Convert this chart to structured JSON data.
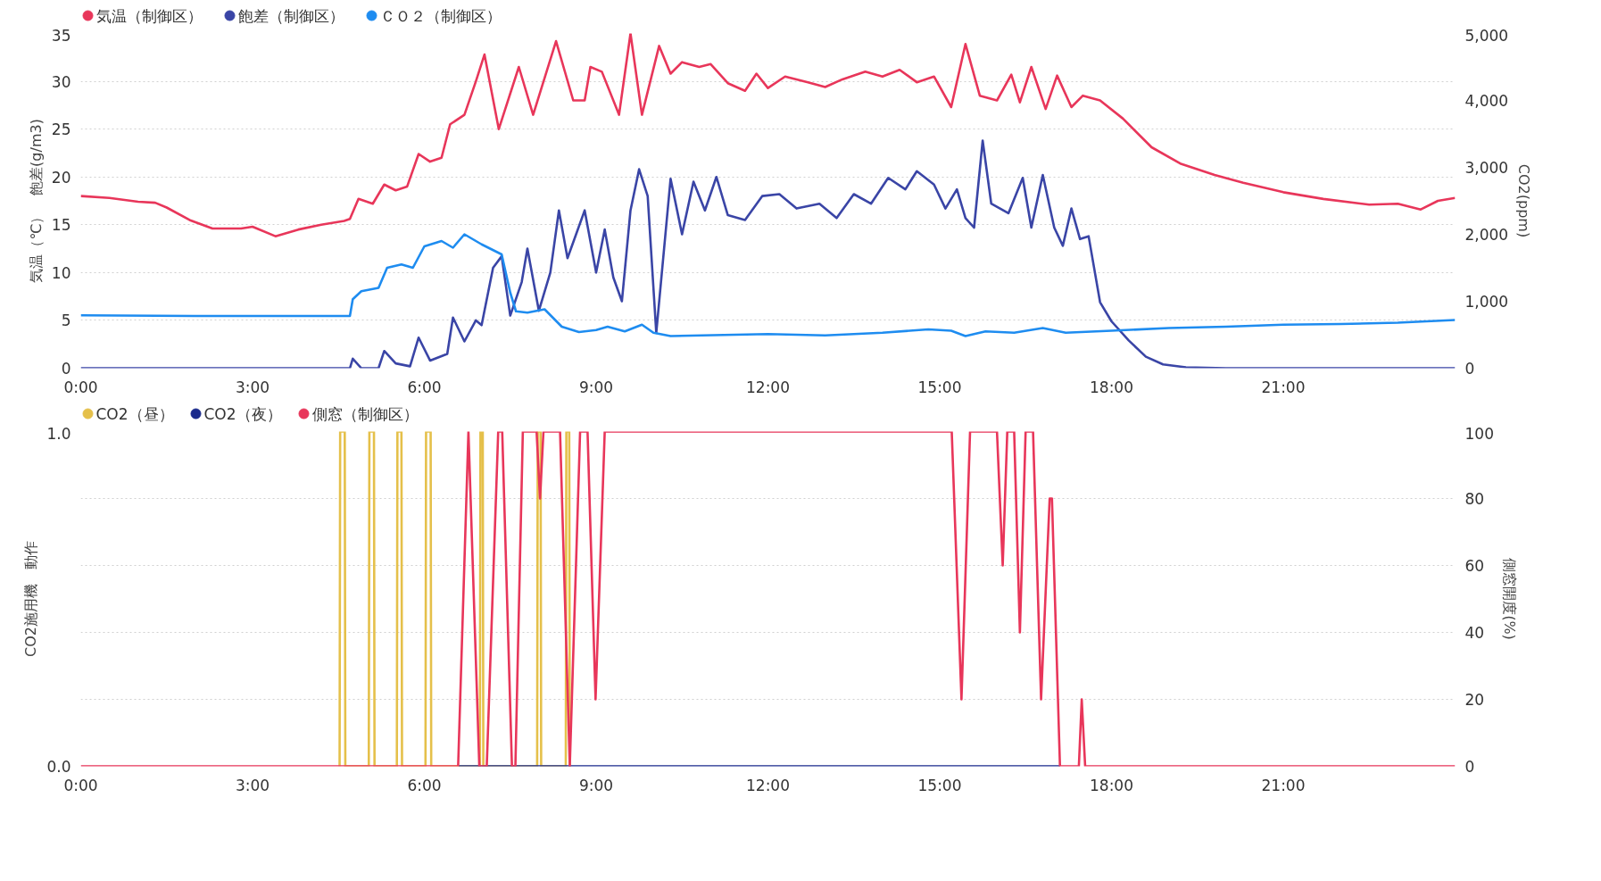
{
  "chart_data": [
    {
      "type": "line",
      "ylabel": "気温（℃）　飽差(g/m3)",
      "y2label": "CO2(ppm)",
      "legend": "top left",
      "grid": "y",
      "marker": "none",
      "line_style": "solid",
      "xlim": [
        0,
        24
      ],
      "xticks": [
        {
          "value": 0,
          "label": "0:00"
        },
        {
          "value": 3,
          "label": "3:00"
        },
        {
          "value": 6,
          "label": "6:00"
        },
        {
          "value": 9,
          "label": "9:00"
        },
        {
          "value": 12,
          "label": "12:00"
        },
        {
          "value": 15,
          "label": "15:00"
        },
        {
          "value": 18,
          "label": "18:00"
        },
        {
          "value": 21,
          "label": "21:00"
        }
      ],
      "ylim": [
        0,
        35
      ],
      "yticks": [
        0,
        5,
        10,
        15,
        20,
        25,
        30,
        35
      ],
      "y2lim": [
        0,
        5000
      ],
      "y2ticks": [
        0,
        {
          "value": 1000,
          "label": "1,000"
        },
        {
          "value": 2000,
          "label": "2,000"
        },
        {
          "value": 3000,
          "label": "3,000"
        },
        {
          "value": 4000,
          "label": "4,000"
        },
        {
          "value": 5000,
          "label": "5,000"
        }
      ],
      "series": [
        {
          "name": "気温（制御区）",
          "color": "#e8365a",
          "x": [
            0,
            0.5,
            1.0,
            1.3,
            1.5,
            1.9,
            2.3,
            2.8,
            3.0,
            3.4,
            3.8,
            4.2,
            4.6,
            4.7,
            4.85,
            5.1,
            5.3,
            5.5,
            5.7,
            5.9,
            6.1,
            6.3,
            6.45,
            6.7,
            6.9,
            7.05,
            7.3,
            7.65,
            7.9,
            8.3,
            8.6,
            8.8,
            8.9,
            9.1,
            9.4,
            9.6,
            9.8,
            10.1,
            10.3,
            10.5,
            10.8,
            11.0,
            11.3,
            11.6,
            11.8,
            12.0,
            12.3,
            12.7,
            13.0,
            13.3,
            13.7,
            14.0,
            14.3,
            14.6,
            14.9,
            15.2,
            15.45,
            15.7,
            16.0,
            16.25,
            16.4,
            16.6,
            16.85,
            17.05,
            17.3,
            17.5,
            17.8,
            18.2,
            18.7,
            19.2,
            19.8,
            20.3,
            21.0,
            21.7,
            22.5,
            23.0,
            23.4,
            23.7,
            24.0
          ],
          "values": [
            18.0,
            17.8,
            17.4,
            17.3,
            16.8,
            15.5,
            14.6,
            14.6,
            14.8,
            13.8,
            14.5,
            15.0,
            15.4,
            15.6,
            17.7,
            17.2,
            19.2,
            18.6,
            19.0,
            22.4,
            21.6,
            22.0,
            25.5,
            26.5,
            30.0,
            32.8,
            25.0,
            31.5,
            26.5,
            34.2,
            28.0,
            28.0,
            31.5,
            31.0,
            26.5,
            35.0,
            26.5,
            33.7,
            30.8,
            32.0,
            31.5,
            31.8,
            29.8,
            29.0,
            30.8,
            29.3,
            30.5,
            29.9,
            29.4,
            30.2,
            31.0,
            30.5,
            31.2,
            29.9,
            30.5,
            27.3,
            33.9,
            28.5,
            28.0,
            30.7,
            27.8,
            31.5,
            27.1,
            30.6,
            27.3,
            28.5,
            28.0,
            26.1,
            23.1,
            21.4,
            20.2,
            19.4,
            18.4,
            17.7,
            17.1,
            17.2,
            16.6,
            17.5,
            17.8
          ]
        },
        {
          "name": "飽差（制御区）",
          "color": "#3a45a6",
          "x": [
            0,
            4.7,
            4.75,
            4.9,
            5.2,
            5.3,
            5.5,
            5.75,
            5.9,
            6.1,
            6.4,
            6.5,
            6.7,
            6.9,
            7.0,
            7.2,
            7.35,
            7.5,
            7.7,
            7.8,
            8.0,
            8.2,
            8.35,
            8.5,
            8.8,
            9.0,
            9.15,
            9.3,
            9.45,
            9.6,
            9.75,
            9.9,
            10.05,
            10.3,
            10.5,
            10.7,
            10.9,
            11.1,
            11.3,
            11.6,
            11.9,
            12.2,
            12.5,
            12.9,
            13.2,
            13.5,
            13.8,
            14.1,
            14.4,
            14.6,
            14.9,
            15.1,
            15.3,
            15.45,
            15.6,
            15.75,
            15.9,
            16.2,
            16.45,
            16.6,
            16.8,
            17.0,
            17.15,
            17.3,
            17.45,
            17.6,
            17.8,
            18.0,
            18.3,
            18.6,
            18.9,
            19.3,
            20.0,
            24.0
          ],
          "values": [
            0,
            0,
            1.0,
            0,
            0,
            1.8,
            0.5,
            0.2,
            3.2,
            0.8,
            1.5,
            5.3,
            2.8,
            5.0,
            4.5,
            10.5,
            11.7,
            5.5,
            9.0,
            12.5,
            6.0,
            10.0,
            16.5,
            11.5,
            16.5,
            10.0,
            14.5,
            9.5,
            7.0,
            16.5,
            20.8,
            18.0,
            3.7,
            19.8,
            14.0,
            19.5,
            16.5,
            20.0,
            16.0,
            15.5,
            18.0,
            18.2,
            16.7,
            17.2,
            15.7,
            18.2,
            17.2,
            19.9,
            18.7,
            20.6,
            19.2,
            16.7,
            18.7,
            15.7,
            14.7,
            23.8,
            17.2,
            16.2,
            19.9,
            14.7,
            20.2,
            14.7,
            12.8,
            16.7,
            13.5,
            13.8,
            6.9,
            4.9,
            2.9,
            1.2,
            0.4,
            0.1,
            0,
            0
          ]
        },
        {
          "name": "ＣＯ２（制御区）",
          "color": "#1e8cf0",
          "axis": "y2",
          "x": [
            0,
            2.0,
            4.7,
            4.75,
            4.9,
            5.2,
            5.35,
            5.6,
            5.8,
            6.0,
            6.3,
            6.5,
            6.7,
            7.0,
            7.35,
            7.5,
            7.6,
            7.8,
            8.1,
            8.4,
            8.7,
            9.0,
            9.2,
            9.5,
            9.8,
            10.0,
            10.3,
            12.0,
            13.0,
            14.0,
            14.8,
            15.2,
            15.45,
            15.8,
            16.3,
            16.8,
            17.2,
            18.0,
            19.0,
            20.0,
            21.0,
            22.0,
            23.0,
            24.0
          ],
          "values": [
            790,
            780,
            780,
            1030,
            1150,
            1200,
            1500,
            1550,
            1500,
            1820,
            1900,
            1800,
            2000,
            1850,
            1700,
            1130,
            850,
            830,
            880,
            620,
            540,
            570,
            620,
            550,
            650,
            530,
            480,
            510,
            490,
            530,
            580,
            560,
            480,
            550,
            530,
            600,
            530,
            560,
            600,
            620,
            650,
            660,
            680,
            720
          ]
        }
      ]
    },
    {
      "type": "line",
      "ylabel": "CO2施用機　動作",
      "y2label": "側窓開度(%)",
      "legend": "top left",
      "grid": "y",
      "marker": "none",
      "line_style": "solid",
      "xlim": [
        0,
        24
      ],
      "xticks": [
        {
          "value": 0,
          "label": "0:00"
        },
        {
          "value": 3,
          "label": "3:00"
        },
        {
          "value": 6,
          "label": "6:00"
        },
        {
          "value": 9,
          "label": "9:00"
        },
        {
          "value": 12,
          "label": "12:00"
        },
        {
          "value": 15,
          "label": "15:00"
        },
        {
          "value": 18,
          "label": "18:00"
        },
        {
          "value": 21,
          "label": "21:00"
        }
      ],
      "ylim": [
        0,
        1
      ],
      "yticks": [
        {
          "value": 0,
          "label": "0.0"
        },
        {
          "value": 0.2,
          "label": null
        },
        {
          "value": 0.4,
          "label": null
        },
        {
          "value": 0.6,
          "label": null
        },
        {
          "value": 0.8,
          "label": null
        },
        {
          "value": 1,
          "label": "1.0"
        }
      ],
      "y2lim": [
        0,
        100
      ],
      "y2ticks": [
        0,
        20,
        40,
        60,
        80,
        100
      ],
      "series": [
        {
          "name": "CO2（昼）",
          "color": "#e5c04a",
          "x": [
            4.52,
            4.53,
            4.61,
            4.62,
            5.03,
            5.04,
            5.12,
            5.13,
            5.52,
            5.53,
            5.6,
            5.61,
            6.02,
            6.03,
            6.11,
            6.12,
            6.97,
            6.98,
            7.02,
            7.03,
            7.97,
            7.98,
            8.03,
            8.04,
            8.47,
            8.48,
            8.53,
            8.54
          ],
          "values": [
            0,
            1,
            1,
            0,
            0,
            1,
            1,
            0,
            0,
            1,
            1,
            0,
            0,
            1,
            1,
            0,
            0,
            1,
            1,
            0,
            0,
            1,
            1,
            0,
            0,
            1,
            1,
            0
          ]
        },
        {
          "name": "CO2（夜）",
          "color": "#1a2a8c",
          "x": [
            6.6,
            17.1
          ],
          "values": [
            0,
            0
          ]
        },
        {
          "name": "側窓（制御区）",
          "color": "#e8365a",
          "axis": "y2",
          "x": [
            0,
            6.59,
            6.77,
            6.96,
            7.09,
            7.29,
            7.36,
            7.53,
            7.59,
            7.72,
            7.96,
            8.02,
            8.08,
            8.37,
            8.54,
            8.72,
            8.85,
            8.99,
            9.15,
            15.21,
            15.38,
            15.53,
            16.0,
            16.1,
            16.18,
            16.3,
            16.4,
            16.5,
            16.63,
            16.77,
            16.92,
            16.96,
            17.1,
            17.43,
            17.48,
            17.54,
            24.0
          ],
          "values": [
            0,
            0,
            100,
            0,
            0,
            100,
            100,
            0,
            0,
            100,
            100,
            80,
            100,
            100,
            0,
            100,
            100,
            20,
            100,
            100,
            20,
            100,
            100,
            60,
            100,
            100,
            40,
            100,
            100,
            20,
            80,
            80,
            0,
            0,
            20,
            0,
            0
          ]
        }
      ]
    }
  ]
}
